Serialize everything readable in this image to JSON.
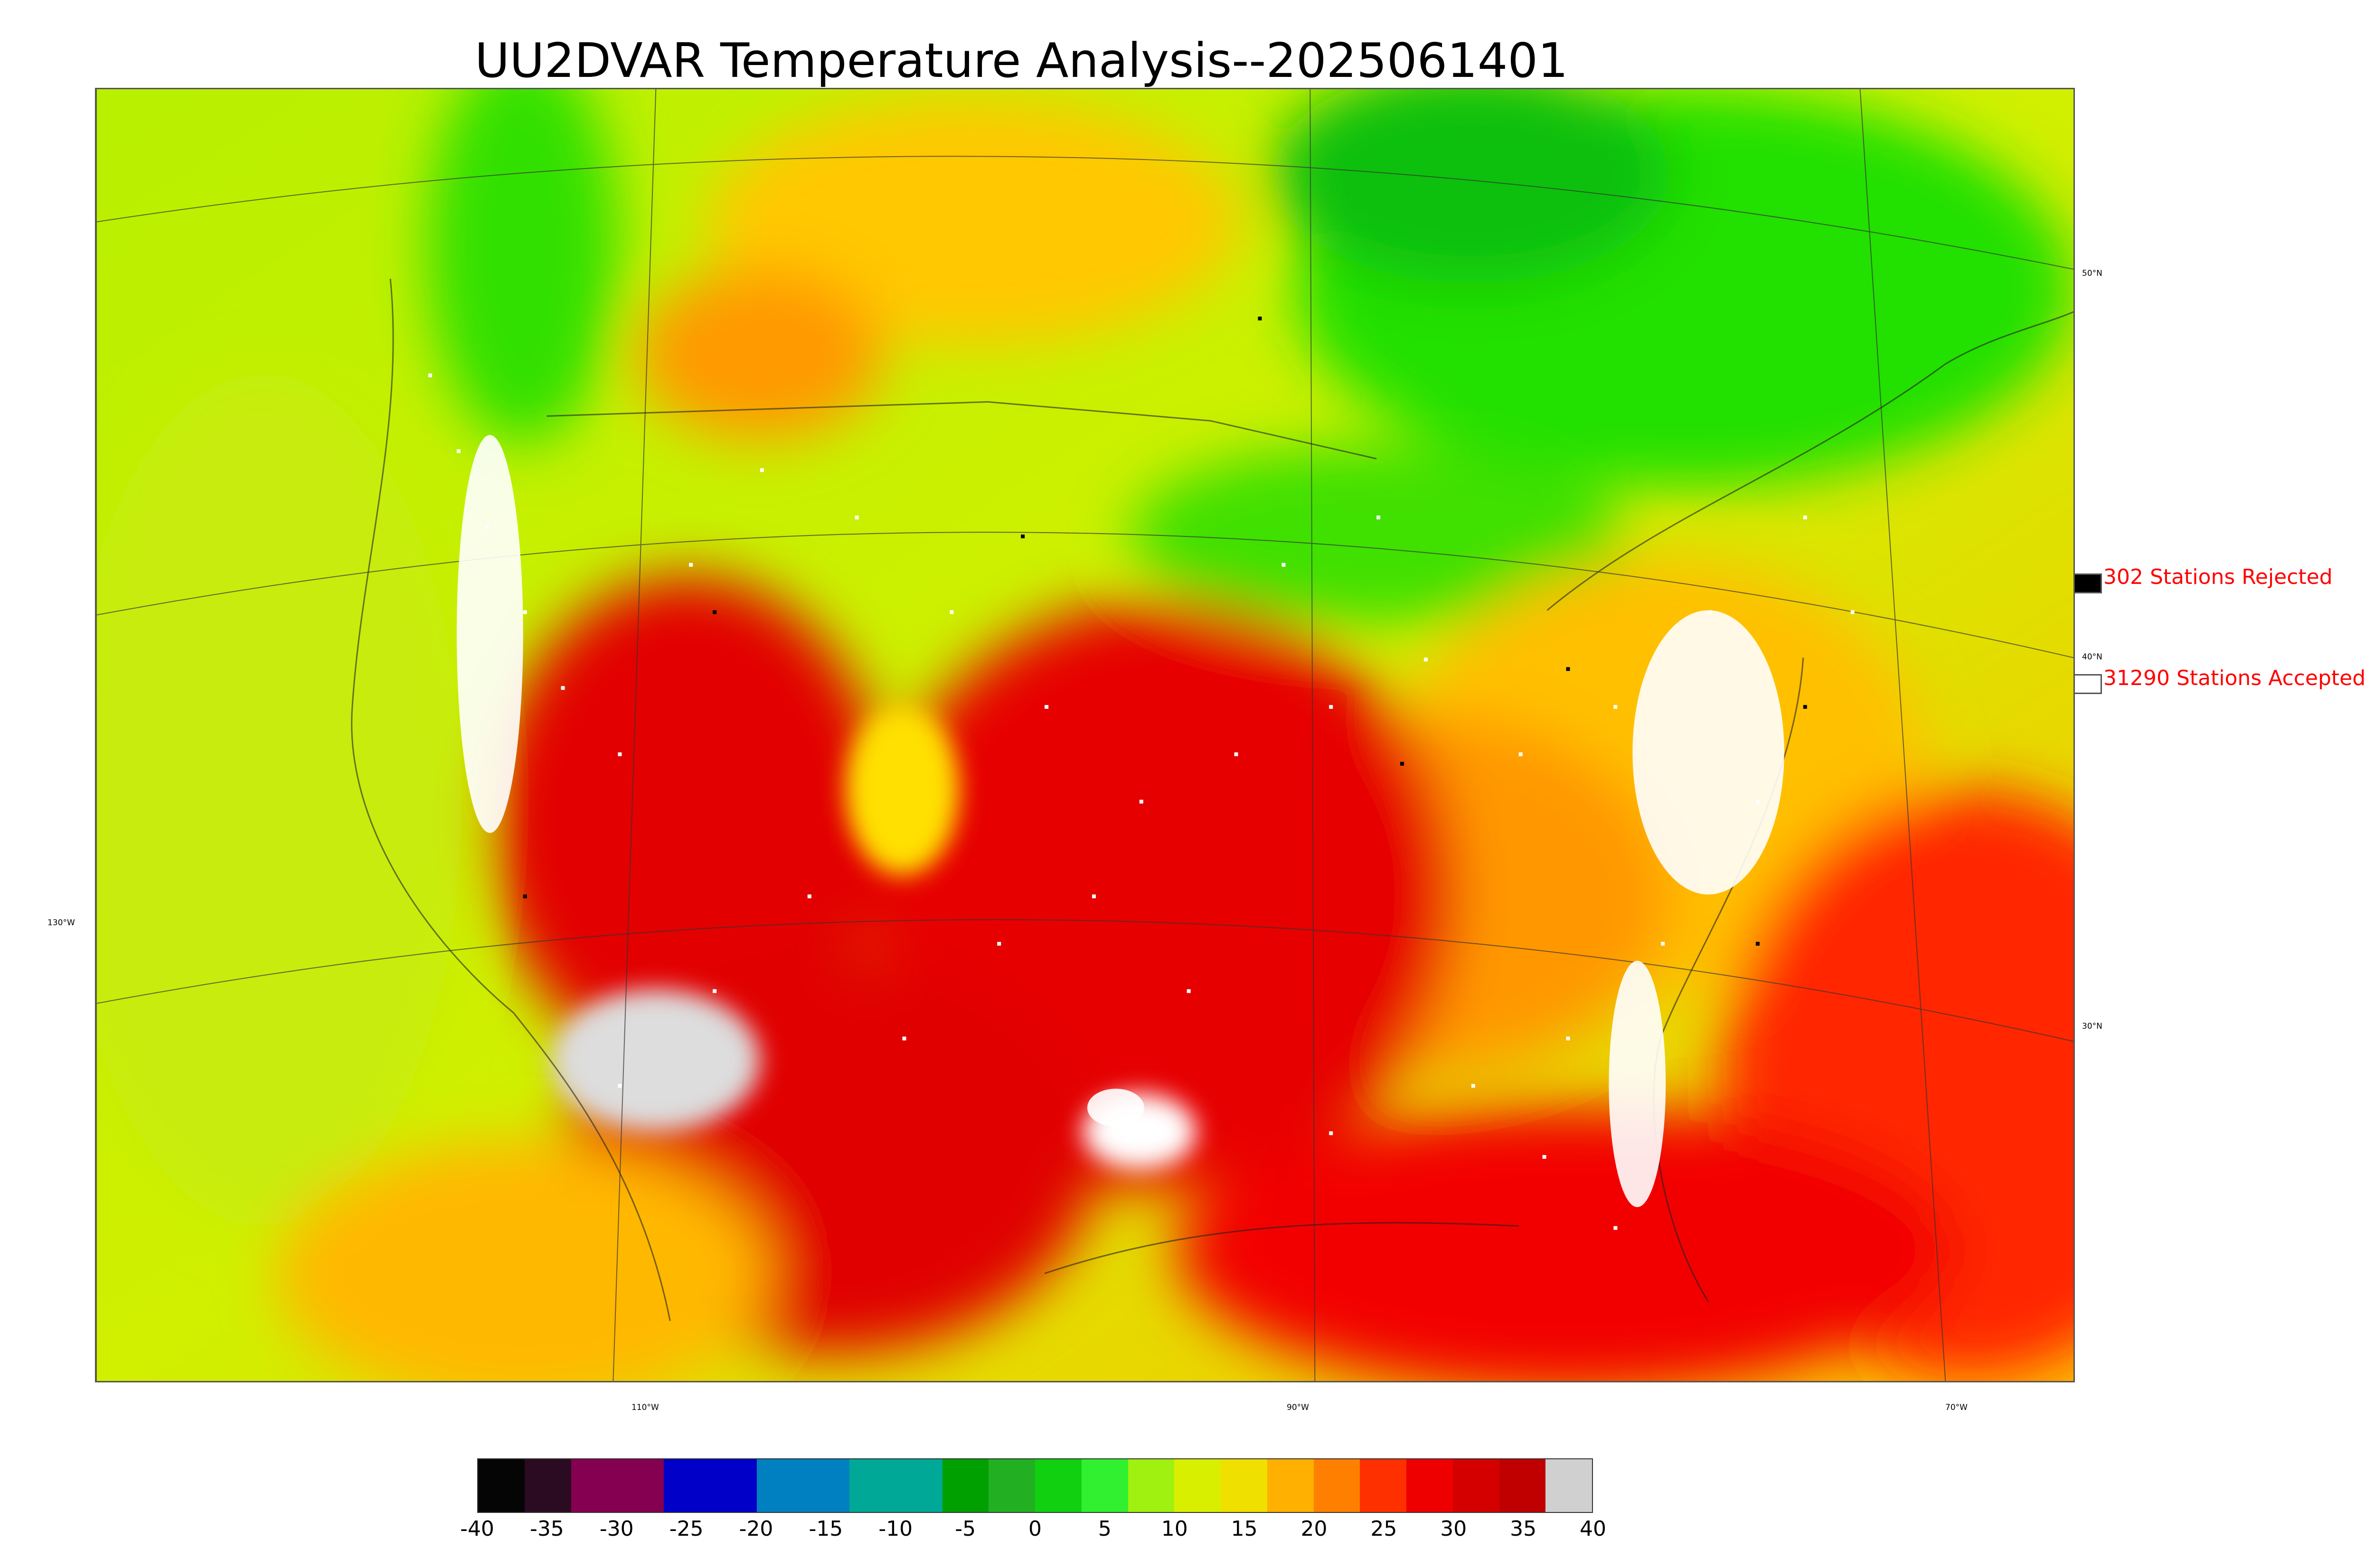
{
  "title": "UU2DVAR Temperature Analysis--2025061401",
  "latitude_labels": [
    "50°N",
    "40°N",
    "30°N"
  ],
  "longitude_labels": [
    "130°W",
    "110°W",
    "90°W",
    "70°W"
  ],
  "legend": {
    "rejected": {
      "label": "302 Stations Rejected",
      "marker_color": "#000000"
    },
    "accepted": {
      "label": "31290 Stations Accepted",
      "marker_color": "#ffffff"
    }
  },
  "colorbar": {
    "ticks": [
      "-40",
      "-35",
      "-30",
      "-25",
      "-20",
      "-15",
      "-10",
      "-5",
      "0",
      "5",
      "10",
      "15",
      "20",
      "25",
      "30",
      "35",
      "40"
    ],
    "range": [
      -40,
      40
    ],
    "colors": [
      "#050505",
      "#2b0b22",
      "#850050",
      "#850050",
      "#0000c8",
      "#0000c8",
      "#0080c0",
      "#0080c0",
      "#00a898",
      "#00a898",
      "#00a000",
      "#22b022",
      "#10d010",
      "#30f030",
      "#a0f010",
      "#d8f000",
      "#f0e000",
      "#ffb000",
      "#ff8000",
      "#ff3000",
      "#ee0000",
      "#d40000",
      "#c00000",
      "#d0d0d0"
    ]
  },
  "colors": {
    "ocean_pacific": "#c8ec10",
    "ocean_atlantic_south": "#ff2a00",
    "hot": "#e60000",
    "warm": "#ff9900",
    "mild": "#ffd000",
    "cool": "#b4f000",
    "cold": "#22dd00",
    "station_accepted": "#ffffff",
    "station_rejected": "#000000",
    "legend_text": "#ff0000"
  }
}
